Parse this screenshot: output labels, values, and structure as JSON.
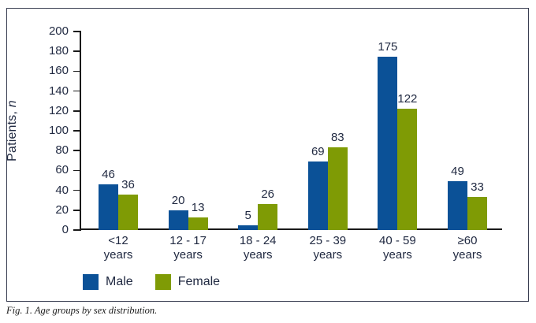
{
  "figure": {
    "caption": "Fig. 1. Age groups by sex distribution."
  },
  "chart_data": {
    "type": "bar",
    "title": "",
    "xlabel": "",
    "ylabel": "Patients, n",
    "ylabel_prefix": "Patients, ",
    "ylabel_italic": "n",
    "ylim": [
      0,
      200
    ],
    "ytick_step": 20,
    "grid": false,
    "legend_position": "bottom-left",
    "value_labels_shown": true,
    "categories": [
      "<12 years",
      "12 - 17 years",
      "18 - 24 years",
      "25 - 39 years",
      "40 - 59 years",
      "≥60 years"
    ],
    "categories_lines": [
      [
        "<12",
        "years"
      ],
      [
        "12 - 17",
        "years"
      ],
      [
        "18 - 24",
        "years"
      ],
      [
        "25 - 39",
        "years"
      ],
      [
        "40 - 59",
        "years"
      ],
      [
        "≥60",
        "years"
      ]
    ],
    "series": [
      {
        "name": "Male",
        "color": "#0b5197",
        "values": [
          46,
          20,
          5,
          69,
          175,
          49
        ]
      },
      {
        "name": "Female",
        "color": "#7f9b05",
        "values": [
          36,
          13,
          26,
          83,
          122,
          33
        ]
      }
    ]
  },
  "colors": {
    "male": "#0b5197",
    "female": "#7f9b05",
    "text": "#212a42",
    "axis": "#1a1a1a",
    "frame_border": "#3a3f52",
    "background": "#ffffff"
  }
}
